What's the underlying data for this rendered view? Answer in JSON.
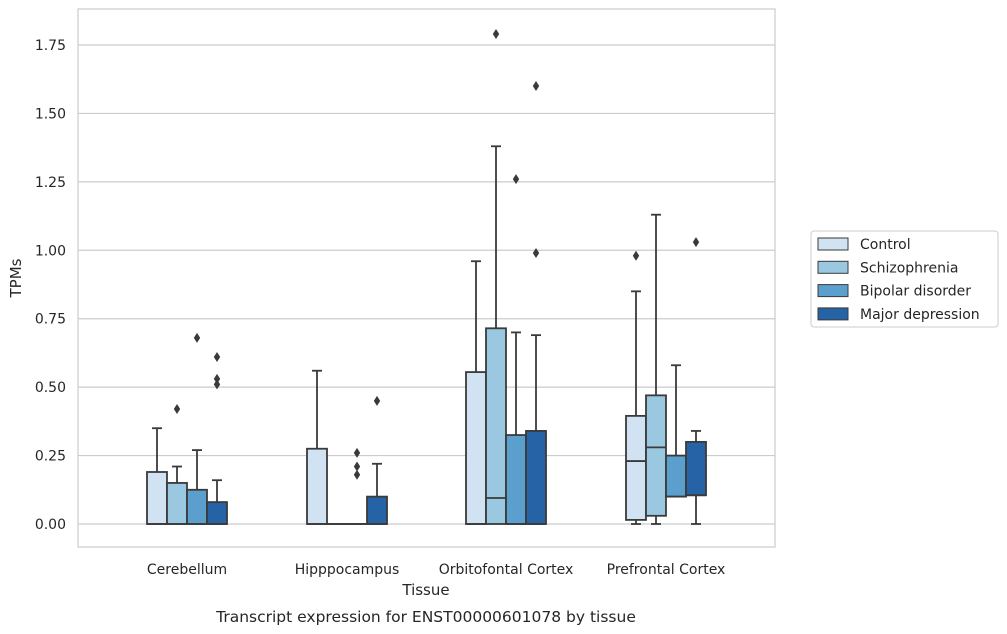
{
  "chart_data": {
    "type": "box",
    "title": "",
    "caption": "Transcript expression for ENST00000601078 by tissue",
    "xlabel": "Tissue",
    "ylabel": "TPMs",
    "ylim": [
      -0.08,
      1.88
    ],
    "yticks": [
      "0.00",
      "0.25",
      "0.50",
      "0.75",
      "1.00",
      "1.25",
      "1.50",
      "1.75"
    ],
    "ytick_values": [
      0,
      0.25,
      0.5,
      0.75,
      1.0,
      1.25,
      1.5,
      1.75
    ],
    "grid": "horizontal",
    "legend_position": "right",
    "categories": [
      "Cerebellum",
      "Hipppocampus",
      "Orbitofontal Cortex",
      "Prefrontal Cortex"
    ],
    "series": [
      {
        "name": "Control",
        "color": "#d1e2f2",
        "boxes": [
          {
            "min": 0,
            "q1": 0,
            "median": 0,
            "q3": 0.19,
            "max": 0.35,
            "outliers": []
          },
          {
            "min": 0,
            "q1": 0,
            "median": 0,
            "q3": 0.275,
            "max": 0.56,
            "outliers": []
          },
          {
            "min": 0,
            "q1": 0,
            "median": 0,
            "q3": 0.555,
            "max": 0.96,
            "outliers": []
          },
          {
            "min": 0,
            "q1": 0.015,
            "median": 0.23,
            "q3": 0.395,
            "max": 0.85,
            "outliers": [
              0.98
            ]
          }
        ]
      },
      {
        "name": "Schizophrenia",
        "color": "#9ac8e0",
        "boxes": [
          {
            "min": 0,
            "q1": 0,
            "median": 0,
            "q3": 0.15,
            "max": 0.21,
            "outliers": [
              0.42
            ]
          },
          {
            "min": 0,
            "q1": 0,
            "median": 0,
            "q3": 0,
            "max": 0,
            "outliers": []
          },
          {
            "min": 0,
            "q1": 0,
            "median": 0.095,
            "q3": 0.715,
            "max": 1.38,
            "outliers": [
              1.79
            ]
          },
          {
            "min": 0,
            "q1": 0.03,
            "median": 0.28,
            "q3": 0.47,
            "max": 1.13,
            "outliers": []
          }
        ]
      },
      {
        "name": "Bipolar disorder",
        "color": "#5a9fcd",
        "boxes": [
          {
            "min": 0,
            "q1": 0,
            "median": 0,
            "q3": 0.125,
            "max": 0.27,
            "outliers": [
              0.68
            ]
          },
          {
            "min": 0,
            "q1": 0,
            "median": 0,
            "q3": 0,
            "max": 0,
            "outliers": [
              0.26,
              0.21,
              0.18
            ]
          },
          {
            "min": 0,
            "q1": 0,
            "median": 0,
            "q3": 0.325,
            "max": 0.7,
            "outliers": [
              1.26
            ]
          },
          {
            "min": 0.1,
            "q1": 0.1,
            "median": 0.1,
            "q3": 0.25,
            "max": 0.58,
            "outliers": []
          }
        ]
      },
      {
        "name": "Major depression",
        "color": "#2563a6",
        "boxes": [
          {
            "min": 0,
            "q1": 0,
            "median": 0,
            "q3": 0.08,
            "max": 0.16,
            "outliers": [
              0.61,
              0.53,
              0.51
            ]
          },
          {
            "min": 0,
            "q1": 0,
            "median": 0,
            "q3": 0.1,
            "max": 0.22,
            "outliers": [
              0.45
            ]
          },
          {
            "min": 0,
            "q1": 0,
            "median": 0,
            "q3": 0.34,
            "max": 0.69,
            "outliers": [
              0.99,
              1.6
            ]
          },
          {
            "min": 0,
            "q1": 0.105,
            "median": 0.105,
            "q3": 0.3,
            "max": 0.34,
            "outliers": [
              1.03
            ]
          }
        ]
      }
    ]
  }
}
